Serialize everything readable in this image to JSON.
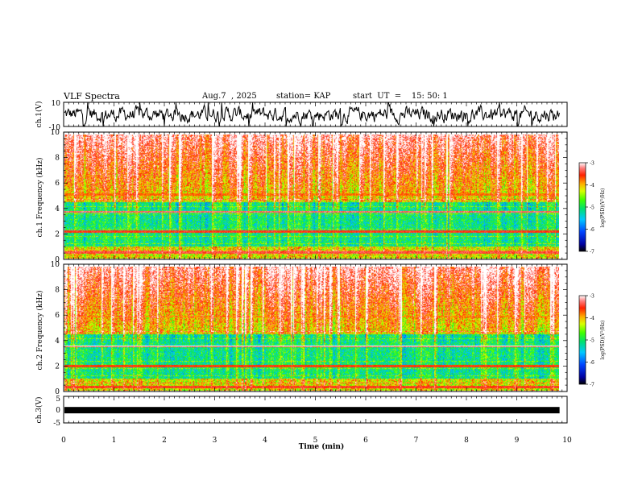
{
  "header": {
    "title": "VLF Spectra",
    "date": "Aug.7  , 2025",
    "station": "station= KAP",
    "start_ut": "start  UT  =    15: 50: 1"
  },
  "chart_data": [
    {
      "type": "line",
      "name": "ch1-waveform",
      "ylabel": "ch.1(V)",
      "ylim": [
        -10,
        10
      ],
      "ytick_labels": [
        "10",
        "-10"
      ],
      "x_range_min": [
        0,
        9.85
      ],
      "series": [
        {
          "name": "ch.1",
          "color": "#000000",
          "amplitude_range_V": [
            -8,
            8
          ]
        }
      ]
    },
    {
      "type": "heatmap",
      "name": "ch1-spectrogram",
      "ylabel": "ch.1\nFrequency  (kHz)",
      "ylim": [
        0,
        10
      ],
      "yticks": [
        0,
        2,
        4,
        6,
        8,
        10
      ],
      "colorbar": {
        "label": "log(PSD)(V²/Hz)",
        "range": [
          -7,
          -3
        ],
        "tick_labels": [
          "-3",
          "-4",
          "-5",
          "-6",
          "-7"
        ]
      },
      "bands": [
        {
          "f_kHz": 3.8,
          "log_psd": -3.3
        },
        {
          "f_kHz": 2.2,
          "log_psd": -3.5
        },
        {
          "f_kHz": 0.5,
          "log_psd": -3.4
        },
        {
          "f_kHz": 5.2,
          "log_psd": -3.8
        }
      ]
    },
    {
      "type": "heatmap",
      "name": "ch2-spectrogram",
      "ylabel": "ch.2\nFrequency  (kHz)",
      "ylim": [
        0,
        10
      ],
      "yticks": [
        0,
        2,
        4,
        6,
        8,
        10
      ],
      "colorbar": {
        "label": "log(PSD)(V²/Hz)",
        "range": [
          -7,
          -3
        ],
        "tick_labels": [
          "-3",
          "-4",
          "-5",
          "-6",
          "-7"
        ]
      },
      "bands": [
        {
          "f_kHz": 3.6,
          "log_psd": -3.4
        },
        {
          "f_kHz": 2.0,
          "log_psd": -3.6
        },
        {
          "f_kHz": 0.3,
          "log_psd": -3.5
        },
        {
          "f_kHz": 6.0,
          "log_psd": -3.9
        }
      ]
    },
    {
      "type": "line",
      "name": "ch3-trace",
      "ylabel": "ch.3(V)",
      "ylim": [
        -5,
        5
      ],
      "ytick_labels": [
        "5",
        "0",
        "-5"
      ],
      "series": [
        {
          "name": "ch.3",
          "color": "#000000",
          "level_V": -0.2,
          "thickness_V": 1.2
        }
      ]
    }
  ],
  "x_axis": {
    "label": "Time  (min)",
    "range": [
      0,
      10
    ],
    "tick_labels": [
      "0",
      "1",
      "2",
      "3",
      "4",
      "5",
      "6",
      "7",
      "8",
      "9",
      "10"
    ],
    "data_end_min": 9.85
  }
}
